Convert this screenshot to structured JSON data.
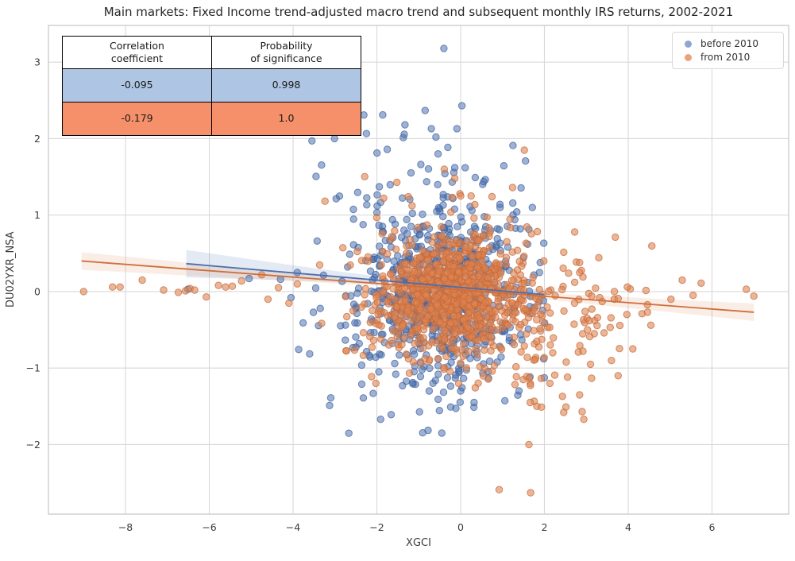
{
  "chart_data": {
    "type": "scatter",
    "title": "Main markets: Fixed Income trend-adjusted macro trend and subsequent monthly IRS returns, 2002-2021",
    "xlabel": "XGCI",
    "ylabel": "DU02YXR_NSA",
    "xlim": [
      -9.84,
      7.83
    ],
    "ylim": [
      -2.91,
      3.48
    ],
    "xticks": [
      -8,
      -6,
      -4,
      -2,
      0,
      2,
      4,
      6
    ],
    "xtick_labels": [
      "−8",
      "−6",
      "−4",
      "−2",
      "0",
      "2",
      "4",
      "6"
    ],
    "yticks": [
      -2,
      -1,
      0,
      1,
      2,
      3
    ],
    "ytick_labels": [
      "−2",
      "−1",
      "0",
      "1",
      "2",
      "3"
    ],
    "grid": true,
    "legend_position": "upper right",
    "colors": {
      "grid": "#d9d9d9",
      "spine": "#cccccc",
      "tick_label": "#3b3b3b",
      "title": "#262626",
      "background": "#ffffff"
    },
    "series": [
      {
        "name": "before 2010",
        "legend_color": "#8fa7d0",
        "point_fill": "rgba(76,114,176,0.55)",
        "point_stroke": "rgba(58,92,153,0.7)",
        "line_color": "#4a6fae",
        "band_fill": "rgba(76,114,176,0.15)",
        "correlation_coefficient": -0.095,
        "probability_of_significance": 0.998,
        "approx_point_count": 800,
        "seed": 20021,
        "clouds": [
          {
            "n": 520,
            "x_mean": -0.35,
            "x_sd": 0.95,
            "y_mean": 0.05,
            "y_sd": 0.52
          },
          {
            "n": 200,
            "x_mean": -1.0,
            "x_sd": 1.55,
            "y_mean": 0.0,
            "y_sd": 0.85
          },
          {
            "n": 60,
            "x_mean": -0.2,
            "x_sd": 0.7,
            "y_mean": 0.0,
            "y_sd": 1.15
          }
        ],
        "x_clip": [
          -3.9,
          2.05
        ],
        "y_clip": [
          -1.88,
          2.45
        ],
        "extra_points": [
          [
            -0.4,
            3.18
          ],
          [
            0.03,
            2.43
          ],
          [
            -1.86,
            2.31
          ],
          [
            -1.33,
            2.18
          ],
          [
            -0.7,
            2.13
          ],
          [
            -0.09,
            2.13
          ],
          [
            -0.59,
            2.02
          ],
          [
            -3.01,
            2.0
          ],
          [
            -3.55,
            1.97
          ],
          [
            -6.51,
            0.03
          ],
          [
            -5.05,
            0.17
          ],
          [
            -4.3,
            0.16
          ],
          [
            -4.05,
            -0.08
          ],
          [
            -3.9,
            0.25
          ],
          [
            -3.1,
            -1.39
          ],
          [
            -2.36,
            -1.21
          ],
          [
            -1.91,
            -1.67
          ],
          [
            -1.55,
            -1.08
          ],
          [
            -0.75,
            -1.3
          ],
          [
            0.32,
            -1.45
          ],
          [
            -0.45,
            -1.85
          ],
          [
            1.9,
            0.38
          ],
          [
            1.98,
            -0.12
          ],
          [
            1.6,
            0.62
          ]
        ],
        "regression": {
          "x0": -6.55,
          "y0": 0.365,
          "x1": 2.0,
          "y1": -0.04,
          "band_x": [
            -6.55,
            -5.0,
            -3.5,
            -2.0,
            -0.5,
            0.75,
            2.0
          ],
          "band_half": [
            0.18,
            0.13,
            0.085,
            0.05,
            0.035,
            0.045,
            0.065
          ]
        }
      },
      {
        "name": "from 2010",
        "legend_color": "#e9a47e",
        "point_fill": "rgba(221,132,82,0.6)",
        "point_stroke": "rgba(198,106,56,0.75)",
        "line_color": "#cf6f3d",
        "band_fill": "rgba(221,132,82,0.15)",
        "correlation_coefficient": -0.179,
        "probability_of_significance": 1.0,
        "approx_point_count": 1050,
        "seed": 20102,
        "clouds": [
          {
            "n": 750,
            "x_mean": -0.25,
            "x_sd": 0.8,
            "y_mean": -0.03,
            "y_sd": 0.34
          },
          {
            "n": 230,
            "x_mean": 0.3,
            "x_sd": 1.75,
            "y_mean": -0.1,
            "y_sd": 0.58
          },
          {
            "n": 70,
            "x_mean": 1.2,
            "x_sd": 1.1,
            "y_mean": -0.35,
            "y_sd": 0.55
          }
        ],
        "x_clip": [
          -3.6,
          4.6
        ],
        "y_clip": [
          -1.6,
          1.55
        ],
        "extra_points": [
          [
            -9.0,
            0.0
          ],
          [
            -8.31,
            0.06
          ],
          [
            -8.13,
            0.06
          ],
          [
            -7.6,
            0.15
          ],
          [
            -7.09,
            0.02
          ],
          [
            -6.74,
            -0.01
          ],
          [
            -6.57,
            0.01
          ],
          [
            -6.46,
            0.04
          ],
          [
            -6.35,
            0.02
          ],
          [
            -6.07,
            -0.07
          ],
          [
            -5.78,
            0.08
          ],
          [
            -5.61,
            0.06
          ],
          [
            -5.45,
            0.07
          ],
          [
            -5.23,
            0.14
          ],
          [
            -4.75,
            0.22
          ],
          [
            -4.6,
            -0.1
          ],
          [
            -4.35,
            0.05
          ],
          [
            -4.1,
            -0.15
          ],
          [
            -3.9,
            0.1
          ],
          [
            6.82,
            0.03
          ],
          [
            7.0,
            -0.06
          ],
          [
            5.74,
            0.11
          ],
          [
            5.29,
            0.15
          ],
          [
            5.02,
            -0.1
          ],
          [
            5.55,
            -0.05
          ],
          [
            3.98,
            0.06
          ],
          [
            3.67,
            0.0
          ],
          [
            3.76,
            -0.09
          ],
          [
            3.13,
            -0.06
          ],
          [
            3.32,
            -0.08
          ],
          [
            3.38,
            -0.13
          ],
          [
            4.33,
            -0.29
          ],
          [
            4.46,
            -0.27
          ],
          [
            4.54,
            -0.44
          ],
          [
            4.11,
            -0.75
          ],
          [
            3.1,
            -0.95
          ],
          [
            3.76,
            -1.1
          ],
          [
            2.97,
            -0.26
          ],
          [
            3.02,
            -0.35
          ],
          [
            3.07,
            -0.38
          ],
          [
            3.03,
            -0.5
          ],
          [
            3.19,
            -0.55
          ],
          [
            3.08,
            -0.59
          ],
          [
            2.84,
            0.38
          ],
          [
            2.84,
            0.25
          ],
          [
            1.59,
            -0.86
          ],
          [
            1.78,
            -0.89
          ],
          [
            2.2,
            -0.8
          ],
          [
            2.81,
            -0.79
          ],
          [
            2.92,
            -0.78
          ],
          [
            1.58,
            -1.11
          ],
          [
            1.64,
            -1.13
          ],
          [
            2.13,
            -1.2
          ],
          [
            2.43,
            -1.37
          ],
          [
            2.84,
            -1.35
          ],
          [
            1.66,
            -1.45
          ],
          [
            1.82,
            -1.5
          ],
          [
            1.93,
            -1.51
          ],
          [
            2.46,
            -1.58
          ],
          [
            2.9,
            -1.57
          ],
          [
            2.94,
            -1.67
          ],
          [
            1.63,
            -2.0
          ],
          [
            0.92,
            -2.59
          ],
          [
            1.67,
            -2.63
          ],
          [
            1.52,
            1.85
          ],
          [
            -0.39,
            1.6
          ],
          [
            -0.14,
            1.48
          ],
          [
            0.0,
            1.25
          ],
          [
            0.25,
            1.25
          ],
          [
            -1.25,
            1.24
          ],
          [
            -0.2,
            1.23
          ]
        ],
        "regression": {
          "x0": -9.05,
          "y0": 0.4,
          "x1": 7.0,
          "y1": -0.27,
          "band_x": [
            -9.05,
            -7.0,
            -5.0,
            -3.0,
            -1.0,
            0.0,
            2.0,
            4.0,
            5.5,
            7.0
          ],
          "band_half": [
            0.115,
            0.09,
            0.065,
            0.04,
            0.025,
            0.022,
            0.04,
            0.07,
            0.09,
            0.115
          ]
        }
      }
    ],
    "inset_table": {
      "headers": [
        {
          "line1": "Correlation",
          "line2": "coefficient"
        },
        {
          "line1": "Probability",
          "line2": "of significance"
        }
      ],
      "rows": [
        {
          "corr": "-0.095",
          "prob": "0.998",
          "color": "#aec6e4"
        },
        {
          "corr": "-0.179",
          "prob": "1.0",
          "color": "#f5906a"
        }
      ]
    }
  }
}
